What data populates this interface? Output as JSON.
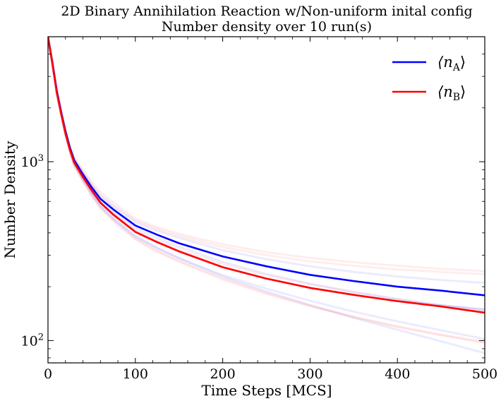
{
  "chart_data": {
    "type": "line",
    "title": "2D Binary Annihilation Reaction w/Non-uniform inital config",
    "subtitle": "Number density over 10 run(s)",
    "xlabel": "Time Steps [MCS]",
    "ylabel": "Number Density",
    "xlim": [
      0,
      500
    ],
    "ylim": [
      75,
      5000
    ],
    "yscale": "log",
    "x_ticks": [
      "0",
      "100",
      "200",
      "300",
      "400",
      "500"
    ],
    "y_ticks": [
      {
        "value": 100,
        "base": "10",
        "exp": "2"
      },
      {
        "value": 1000,
        "base": "10",
        "exp": "3"
      }
    ],
    "x": [
      0,
      5,
      10,
      15,
      20,
      25,
      30,
      40,
      50,
      60,
      75,
      100,
      125,
      150,
      200,
      250,
      300,
      350,
      400,
      450,
      500
    ],
    "series": [
      {
        "name_main": "⟨n",
        "name_sub": "A",
        "name_tail": "⟩",
        "color": "#0000ff",
        "values": [
          5000,
          3600,
          2500,
          1900,
          1480,
          1200,
          1020,
          850,
          720,
          620,
          540,
          440,
          390,
          350,
          295,
          260,
          233,
          215,
          200,
          190,
          179
        ]
      },
      {
        "name_main": "⟨n",
        "name_sub": "B",
        "name_tail": "⟩",
        "color": "#ff0000",
        "values": [
          5000,
          3550,
          2450,
          1860,
          1440,
          1170,
          990,
          820,
          690,
          590,
          505,
          405,
          355,
          315,
          257,
          222,
          197,
          180,
          166,
          155,
          143
        ]
      }
    ],
    "runs_a": [
      [
        5000,
        3600,
        2500,
        1900,
        1480,
        1210,
        1030,
        870,
        740,
        645,
        560,
        460,
        410,
        375,
        320,
        285,
        260,
        242,
        228,
        218,
        210
      ],
      [
        5000,
        3550,
        2450,
        1860,
        1450,
        1180,
        1000,
        830,
        700,
        595,
        510,
        410,
        355,
        315,
        258,
        222,
        197,
        180,
        167,
        157,
        150
      ],
      [
        5000,
        3580,
        2480,
        1880,
        1460,
        1190,
        1010,
        845,
        712,
        612,
        528,
        426,
        374,
        334,
        275,
        236,
        208,
        187,
        171,
        158,
        148
      ],
      [
        5000,
        3500,
        2400,
        1820,
        1410,
        1140,
        960,
        790,
        660,
        562,
        478,
        380,
        328,
        289,
        232,
        195,
        167,
        145,
        128,
        114,
        102
      ],
      [
        5000,
        3530,
        2430,
        1840,
        1420,
        1150,
        970,
        800,
        670,
        570,
        485,
        385,
        330,
        288,
        228,
        188,
        158,
        134,
        115,
        99,
        85
      ]
    ],
    "runs_b": [
      [
        5000,
        3650,
        2550,
        1930,
        1510,
        1230,
        1060,
        900,
        770,
        680,
        590,
        480,
        430,
        395,
        345,
        312,
        290,
        274,
        262,
        252,
        244
      ],
      [
        5000,
        3600,
        2520,
        1910,
        1490,
        1215,
        1040,
        880,
        750,
        655,
        570,
        470,
        420,
        385,
        333,
        300,
        277,
        262,
        250,
        242,
        235
      ],
      [
        5000,
        3560,
        2460,
        1870,
        1450,
        1175,
        995,
        825,
        695,
        595,
        512,
        412,
        362,
        323,
        268,
        232,
        206,
        186,
        170,
        157,
        147
      ],
      [
        5000,
        3510,
        2410,
        1830,
        1400,
        1125,
        945,
        775,
        645,
        548,
        465,
        368,
        314,
        276,
        219,
        182,
        155,
        135,
        119,
        107,
        97
      ],
      [
        5000,
        3520,
        2420,
        1840,
        1410,
        1135,
        955,
        785,
        655,
        556,
        472,
        372,
        318,
        279,
        223,
        185,
        157,
        136,
        120,
        108,
        98
      ]
    ],
    "legend": "top-right",
    "grid": false
  }
}
